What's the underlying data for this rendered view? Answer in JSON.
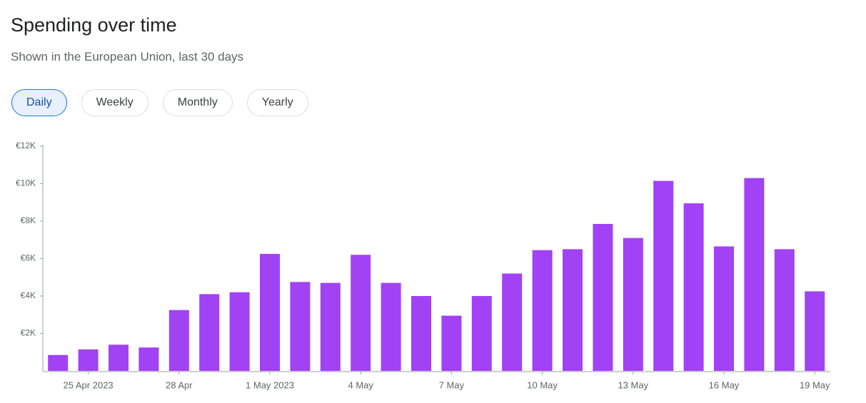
{
  "filters": [
    "Daily",
    "Weekly",
    "Monthly",
    "Yearly"
  ],
  "chart_data": {
    "type": "bar",
    "title": "Spending over time",
    "subtitle": "Shown in the European Union, last 30 days",
    "categories": [
      null,
      "25 Apr 2023",
      null,
      null,
      "28 Apr",
      null,
      null,
      "1 May 2023",
      null,
      null,
      "4 May",
      null,
      null,
      "7 May",
      null,
      null,
      "10 May",
      null,
      null,
      "13 May",
      null,
      null,
      "16 May",
      null,
      null,
      "19 May"
    ],
    "values": [
      850,
      1150,
      1400,
      1250,
      3250,
      4100,
      4200,
      6250,
      4750,
      4700,
      6200,
      4700,
      4000,
      2950,
      4000,
      5200,
      6450,
      6500,
      7850,
      7100,
      10150,
      8950,
      6650,
      10300,
      6500,
      4250
    ],
    "color": "#a142f4",
    "ylim": [
      0,
      12000
    ],
    "yticks": [
      {
        "value": 2000,
        "label": "€2K"
      },
      {
        "value": 4000,
        "label": "€4K"
      },
      {
        "value": 6000,
        "label": "€6K"
      },
      {
        "value": 8000,
        "label": "€8K"
      },
      {
        "value": 10000,
        "label": "€10K"
      },
      {
        "value": 12000,
        "label": "€12K"
      }
    ],
    "grid": false
  }
}
